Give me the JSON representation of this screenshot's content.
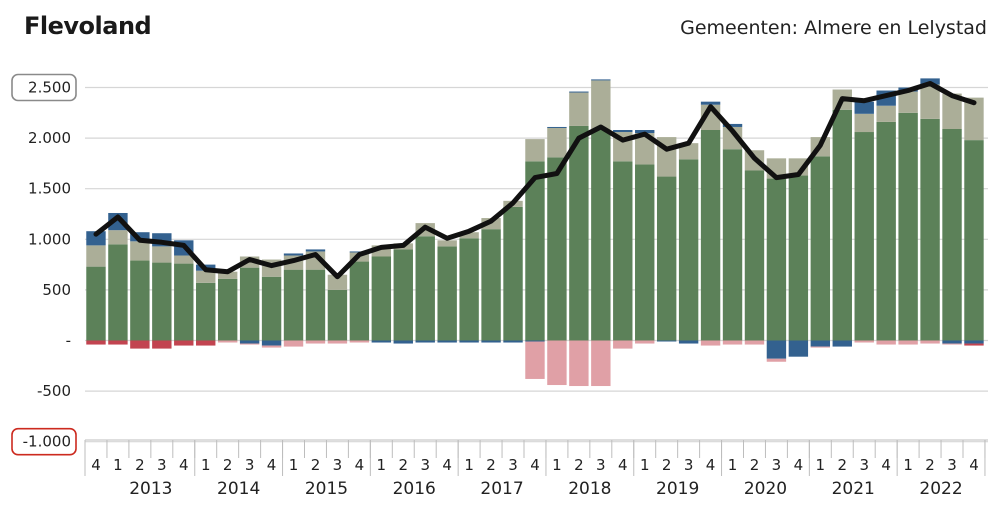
{
  "header": {
    "title": "Flevoland",
    "subtitle": "Gemeenten: Almere en Lelystad"
  },
  "chart_data": {
    "type": "bar",
    "stacked": true,
    "ylim": [
      -1000,
      2600
    ],
    "yticks": [
      2500,
      2000,
      1500,
      1000,
      500,
      0,
      -500,
      -1000
    ],
    "ytick_labels": [
      "2.500",
      "2.000",
      "1.500",
      "1.000",
      "500",
      "-",
      "-500",
      "-1.000"
    ],
    "ytick_colors": [
      "#222222",
      "#222222",
      "#222222",
      "#222222",
      "#222222",
      "#222222",
      "#cc2a1f",
      "#cc2a1f"
    ],
    "boxed_ticks": [
      2500,
      -1000
    ],
    "categories": [
      "4",
      "1",
      "2",
      "3",
      "4",
      "1",
      "2",
      "3",
      "4",
      "1",
      "2",
      "3",
      "4",
      "1",
      "2",
      "3",
      "4",
      "1",
      "2",
      "3",
      "4",
      "1",
      "2",
      "3",
      "4",
      "1",
      "2",
      "3",
      "4",
      "1",
      "2",
      "3",
      "4",
      "1",
      "2",
      "3",
      "4",
      "1",
      "2",
      "3",
      "4"
    ],
    "years": [
      {
        "label": "2013",
        "first": 1,
        "last": 4
      },
      {
        "label": "2014",
        "first": 5,
        "last": 8
      },
      {
        "label": "2015",
        "first": 9,
        "last": 12
      },
      {
        "label": "2016",
        "first": 13,
        "last": 16
      },
      {
        "label": "2017",
        "first": 17,
        "last": 20
      },
      {
        "label": "2018",
        "first": 21,
        "last": 24
      },
      {
        "label": "2019",
        "first": 25,
        "last": 28
      },
      {
        "label": "2020",
        "first": 29,
        "last": 32
      },
      {
        "label": "2021",
        "first": 33,
        "last": 36
      },
      {
        "label": "2022",
        "first": 37,
        "last": 40
      }
    ],
    "colors": {
      "green": "#5c8159",
      "grey": "#abae98",
      "blue": "#33618f",
      "red": "#c24450",
      "pink": "#e0a0a6",
      "line": "#111111"
    },
    "stacks": [
      [
        [
          "green",
          730
        ],
        [
          "grey",
          210
        ],
        [
          "blue",
          140
        ],
        [
          "red",
          -40
        ]
      ],
      [
        [
          "green",
          950
        ],
        [
          "grey",
          140
        ],
        [
          "blue",
          170
        ],
        [
          "red",
          -40
        ]
      ],
      [
        [
          "green",
          790
        ],
        [
          "grey",
          190
        ],
        [
          "blue",
          90
        ],
        [
          "red",
          -80
        ]
      ],
      [
        [
          "green",
          770
        ],
        [
          "grey",
          160
        ],
        [
          "blue",
          130
        ],
        [
          "red",
          -80
        ]
      ],
      [
        [
          "green",
          760
        ],
        [
          "grey",
          80
        ],
        [
          "blue",
          150
        ],
        [
          "red",
          -50
        ]
      ],
      [
        [
          "green",
          570
        ],
        [
          "grey",
          120
        ],
        [
          "blue",
          60
        ],
        [
          "red",
          -50
        ]
      ],
      [
        [
          "green",
          610
        ],
        [
          "grey",
          70
        ],
        [
          "pink",
          -20
        ]
      ],
      [
        [
          "green",
          720
        ],
        [
          "grey",
          110
        ],
        [
          "blue",
          -30
        ],
        [
          "pink",
          -10
        ]
      ],
      [
        [
          "green",
          630
        ],
        [
          "grey",
          170
        ],
        [
          "blue",
          -50
        ],
        [
          "pink",
          -20
        ]
      ],
      [
        [
          "green",
          700
        ],
        [
          "grey",
          140
        ],
        [
          "blue",
          20
        ],
        [
          "pink",
          -60
        ]
      ],
      [
        [
          "green",
          700
        ],
        [
          "grey",
          180
        ],
        [
          "blue",
          20
        ],
        [
          "pink",
          -30
        ]
      ],
      [
        [
          "green",
          500
        ],
        [
          "grey",
          150
        ],
        [
          "pink",
          -30
        ]
      ],
      [
        [
          "green",
          780
        ],
        [
          "grey",
          90
        ],
        [
          "blue",
          10
        ],
        [
          "pink",
          -20
        ]
      ],
      [
        [
          "green",
          830
        ],
        [
          "grey",
          110
        ],
        [
          "blue",
          -20
        ]
      ],
      [
        [
          "green",
          900
        ],
        [
          "grey",
          60
        ],
        [
          "blue",
          -30
        ]
      ],
      [
        [
          "green",
          1030
        ],
        [
          "grey",
          130
        ],
        [
          "blue",
          -20
        ]
      ],
      [
        [
          "green",
          930
        ],
        [
          "grey",
          60
        ],
        [
          "blue",
          -20
        ]
      ],
      [
        [
          "green",
          1010
        ],
        [
          "grey",
          60
        ],
        [
          "blue",
          -20
        ]
      ],
      [
        [
          "green",
          1100
        ],
        [
          "grey",
          110
        ],
        [
          "blue",
          -20
        ]
      ],
      [
        [
          "green",
          1320
        ],
        [
          "grey",
          60
        ],
        [
          "blue",
          -20
        ]
      ],
      [
        [
          "green",
          1770
        ],
        [
          "grey",
          220
        ],
        [
          "blue",
          -10
        ],
        [
          "pink",
          -370
        ]
      ],
      [
        [
          "green",
          1810
        ],
        [
          "grey",
          290
        ],
        [
          "blue",
          10
        ],
        [
          "pink",
          -440
        ]
      ],
      [
        [
          "green",
          2120
        ],
        [
          "grey",
          330
        ],
        [
          "blue",
          10
        ],
        [
          "pink",
          -450
        ]
      ],
      [
        [
          "green",
          2080
        ],
        [
          "grey",
          490
        ],
        [
          "blue",
          10
        ],
        [
          "pink",
          -450
        ]
      ],
      [
        [
          "green",
          1770
        ],
        [
          "grey",
          290
        ],
        [
          "blue",
          20
        ],
        [
          "pink",
          -80
        ]
      ],
      [
        [
          "green",
          1740
        ],
        [
          "grey",
          310
        ],
        [
          "blue",
          30
        ],
        [
          "pink",
          -30
        ]
      ],
      [
        [
          "green",
          1620
        ],
        [
          "grey",
          390
        ],
        [
          "blue",
          -10
        ]
      ],
      [
        [
          "green",
          1790
        ],
        [
          "grey",
          160
        ],
        [
          "blue",
          -30
        ]
      ],
      [
        [
          "green",
          2080
        ],
        [
          "grey",
          250
        ],
        [
          "blue",
          30
        ],
        [
          "pink",
          -50
        ]
      ],
      [
        [
          "green",
          1890
        ],
        [
          "grey",
          220
        ],
        [
          "blue",
          30
        ],
        [
          "pink",
          -40
        ]
      ],
      [
        [
          "green",
          1680
        ],
        [
          "grey",
          200
        ],
        [
          "pink",
          -40
        ]
      ],
      [
        [
          "green",
          1600
        ],
        [
          "grey",
          200
        ],
        [
          "blue",
          -180
        ],
        [
          "pink",
          -30
        ]
      ],
      [
        [
          "green",
          1630
        ],
        [
          "grey",
          170
        ],
        [
          "blue",
          -160
        ]
      ],
      [
        [
          "green",
          1820
        ],
        [
          "grey",
          190
        ],
        [
          "blue",
          -60
        ],
        [
          "pink",
          -10
        ]
      ],
      [
        [
          "green",
          2280
        ],
        [
          "grey",
          200
        ],
        [
          "blue",
          -60
        ]
      ],
      [
        [
          "green",
          2060
        ],
        [
          "grey",
          180
        ],
        [
          "blue",
          120
        ],
        [
          "pink",
          -20
        ]
      ],
      [
        [
          "green",
          2160
        ],
        [
          "grey",
          160
        ],
        [
          "blue",
          150
        ],
        [
          "pink",
          -40
        ]
      ],
      [
        [
          "green",
          2250
        ],
        [
          "grey",
          210
        ],
        [
          "blue",
          40
        ],
        [
          "pink",
          -40
        ]
      ],
      [
        [
          "green",
          2190
        ],
        [
          "grey",
          340
        ],
        [
          "blue",
          60
        ],
        [
          "pink",
          -30
        ]
      ],
      [
        [
          "green",
          2090
        ],
        [
          "grey",
          350
        ],
        [
          "blue",
          -30
        ],
        [
          "pink",
          -10
        ]
      ],
      [
        [
          "green",
          1980
        ],
        [
          "grey",
          420
        ],
        [
          "blue",
          -30
        ],
        [
          "red",
          -20
        ]
      ]
    ],
    "line_values": [
      1050,
      1220,
      990,
      970,
      940,
      700,
      680,
      800,
      740,
      790,
      850,
      630,
      850,
      920,
      940,
      1120,
      1010,
      1080,
      1180,
      1360,
      1610,
      1650,
      2000,
      2110,
      1980,
      2040,
      1890,
      1950,
      2310,
      2070,
      1800,
      1610,
      1640,
      1930,
      2390,
      2370,
      2420,
      2470,
      2540,
      2420,
      2350
    ]
  }
}
